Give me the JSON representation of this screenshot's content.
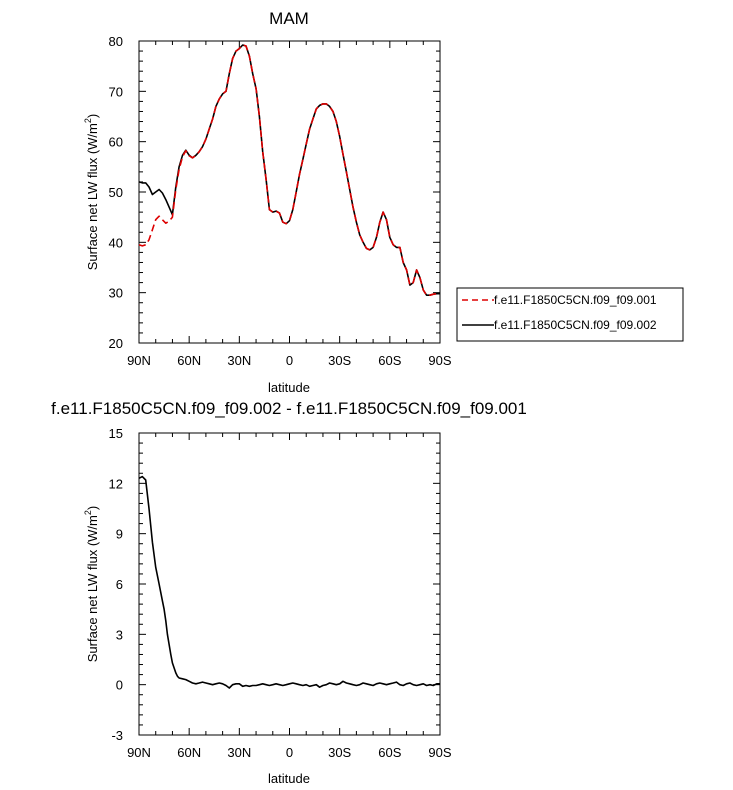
{
  "chart_data": [
    {
      "type": "line",
      "title": "MAM",
      "xlabel": "latitude",
      "ylabel": "Surface net LW flux (W/m",
      "ylabel_sup": "2",
      "ylabel_close": ")",
      "xlim": [
        90,
        -90
      ],
      "ylim": [
        20,
        80
      ],
      "x_ticks": [
        90,
        60,
        30,
        0,
        -30,
        -60,
        -90
      ],
      "x_tick_labels": [
        "90N",
        "60N",
        "30N",
        "0",
        "30S",
        "60S",
        "90S"
      ],
      "y_ticks": [
        20,
        30,
        40,
        50,
        60,
        70,
        80
      ],
      "y_tick_labels": [
        "20",
        "30",
        "40",
        "50",
        "60",
        "70",
        "80"
      ],
      "legend": {
        "placement": "outside-right",
        "entries": [
          "f.e11.F1850C5CN.f09_f09.001",
          "f.e11.F1850C5CN.f09_f09.002"
        ]
      },
      "series": [
        {
          "name": "f.e11.F1850C5CN.f09_f09.001",
          "color": "#dd0000",
          "dash": "dashed",
          "x": [
            90,
            88,
            86,
            84,
            82,
            80,
            78,
            76,
            74,
            72,
            70,
            68,
            66,
            64,
            62,
            60,
            58,
            56,
            54,
            52,
            50,
            48,
            46,
            44,
            42,
            40,
            38,
            36,
            34,
            32,
            30,
            28,
            26,
            24,
            22,
            20,
            18,
            16,
            14,
            12,
            10,
            8,
            6,
            4,
            2,
            0,
            -2,
            -4,
            -6,
            -8,
            -10,
            -12,
            -14,
            -16,
            -18,
            -20,
            -22,
            -24,
            -26,
            -28,
            -30,
            -32,
            -34,
            -36,
            -38,
            -40,
            -42,
            -44,
            -46,
            -48,
            -50,
            -52,
            -54,
            -56,
            -58,
            -60,
            -62,
            -64,
            -66,
            -68,
            -70,
            -72,
            -74,
            -76,
            -78,
            -80,
            -82,
            -84,
            -86,
            -88,
            -90
          ],
          "values": [
            39.5,
            39.3,
            39.5,
            40.5,
            42.5,
            44.5,
            45.2,
            44.5,
            43.8,
            44.2,
            45.0,
            50.5,
            54.5,
            57.0,
            58.2,
            57.2,
            56.8,
            57.3,
            58.0,
            59.0,
            60.5,
            62.5,
            64.5,
            67.0,
            68.5,
            69.5,
            70.0,
            73.5,
            76.5,
            78.0,
            78.5,
            79.2,
            79.0,
            77.0,
            73.5,
            70.5,
            65.0,
            58.0,
            52.5,
            46.5,
            46.0,
            46.2,
            45.8,
            44.0,
            43.7,
            44.3,
            46.5,
            50.0,
            53.5,
            56.5,
            59.5,
            62.5,
            64.5,
            66.5,
            67.2,
            67.5,
            67.5,
            67.0,
            66.0,
            64.0,
            61.0,
            57.5,
            54.0,
            50.5,
            47.0,
            44.0,
            41.5,
            40.0,
            38.8,
            38.5,
            39.0,
            41.0,
            44.0,
            46.0,
            44.5,
            41.0,
            39.5,
            39.0,
            39.0,
            36.0,
            34.5,
            31.5,
            32.0,
            34.5,
            33.0,
            30.5,
            29.5,
            29.5,
            29.7,
            29.8,
            29.8
          ]
        },
        {
          "name": "f.e11.F1850C5CN.f09_f09.002",
          "color": "#000000",
          "dash": "solid",
          "x": [
            90,
            88,
            86,
            84,
            82,
            80,
            78,
            76,
            74,
            72,
            70,
            68,
            66,
            64,
            62,
            60,
            58,
            56,
            54,
            52,
            50,
            48,
            46,
            44,
            42,
            40,
            38,
            36,
            34,
            32,
            30,
            28,
            26,
            24,
            22,
            20,
            18,
            16,
            14,
            12,
            10,
            8,
            6,
            4,
            2,
            0,
            -2,
            -4,
            -6,
            -8,
            -10,
            -12,
            -14,
            -16,
            -18,
            -20,
            -22,
            -24,
            -26,
            -28,
            -30,
            -32,
            -34,
            -36,
            -38,
            -40,
            -42,
            -44,
            -46,
            -48,
            -50,
            -52,
            -54,
            -56,
            -58,
            -60,
            -62,
            -64,
            -66,
            -68,
            -70,
            -72,
            -74,
            -76,
            -78,
            -80,
            -82,
            -84,
            -86,
            -88,
            -90
          ],
          "values": [
            52.0,
            51.8,
            51.8,
            51.0,
            49.5,
            50.0,
            50.5,
            49.8,
            48.5,
            47.0,
            45.5,
            51.0,
            55.0,
            57.3,
            58.3,
            57.3,
            56.8,
            57.3,
            58.0,
            59.0,
            60.5,
            62.5,
            64.5,
            67.0,
            68.5,
            69.5,
            70.0,
            73.5,
            76.5,
            78.0,
            78.5,
            79.2,
            79.0,
            77.0,
            73.5,
            70.5,
            65.0,
            58.0,
            52.5,
            46.5,
            46.0,
            46.2,
            45.8,
            44.0,
            43.7,
            44.3,
            46.5,
            50.0,
            53.5,
            56.5,
            59.5,
            62.5,
            64.5,
            66.5,
            67.2,
            67.5,
            67.5,
            67.0,
            66.0,
            64.0,
            61.0,
            57.5,
            54.0,
            50.5,
            47.0,
            44.0,
            41.5,
            40.0,
            38.8,
            38.5,
            39.0,
            41.0,
            44.0,
            46.0,
            44.5,
            41.0,
            39.5,
            39.0,
            39.0,
            36.0,
            34.5,
            31.5,
            32.0,
            34.5,
            33.0,
            30.5,
            29.5,
            29.5,
            29.7,
            29.8,
            29.8
          ]
        }
      ]
    },
    {
      "type": "line",
      "title": "f.e11.F1850C5CN.f09_f09.002 - f.e11.F1850C5CN.f09_f09.001",
      "xlabel": "latitude",
      "ylabel": "Surface net LW flux (W/m",
      "ylabel_sup": "2",
      "ylabel_close": ")",
      "xlim": [
        90,
        -90
      ],
      "ylim": [
        -3,
        15
      ],
      "x_ticks": [
        90,
        60,
        30,
        0,
        -30,
        -60,
        -90
      ],
      "x_tick_labels": [
        "90N",
        "60N",
        "30N",
        "0",
        "30S",
        "60S",
        "90S"
      ],
      "y_ticks": [
        -3,
        0,
        3,
        6,
        9,
        12,
        15
      ],
      "y_tick_labels": [
        "-3",
        "0",
        "3",
        "6",
        "9",
        "12",
        "15"
      ],
      "series": [
        {
          "color": "#000000",
          "dash": "solid",
          "x": [
            90,
            88,
            86,
            84,
            83,
            82,
            80,
            78,
            76,
            75,
            74,
            73,
            72,
            71,
            70,
            69,
            68,
            67,
            66,
            64,
            62,
            60,
            58,
            56,
            54,
            52,
            50,
            48,
            46,
            44,
            42,
            40,
            38,
            36,
            34,
            32,
            30,
            28,
            26,
            24,
            22,
            20,
            18,
            16,
            14,
            12,
            10,
            8,
            6,
            4,
            2,
            0,
            -2,
            -4,
            -6,
            -8,
            -10,
            -12,
            -14,
            -16,
            -18,
            -20,
            -22,
            -24,
            -26,
            -28,
            -30,
            -32,
            -34,
            -36,
            -38,
            -40,
            -42,
            -44,
            -46,
            -48,
            -50,
            -52,
            -54,
            -56,
            -58,
            -60,
            -62,
            -64,
            -66,
            -68,
            -70,
            -72,
            -74,
            -76,
            -78,
            -80,
            -82,
            -84,
            -86,
            -88,
            -90
          ],
          "values": [
            12.3,
            12.4,
            12.2,
            10.5,
            9.5,
            8.5,
            7.0,
            6.0,
            5.0,
            4.5,
            3.8,
            3.0,
            2.4,
            1.8,
            1.3,
            1.0,
            0.7,
            0.5,
            0.4,
            0.35,
            0.3,
            0.2,
            0.1,
            0.05,
            0.1,
            0.15,
            0.1,
            0.05,
            0.0,
            0.05,
            0.1,
            0.05,
            -0.05,
            -0.2,
            0.0,
            0.05,
            0.05,
            -0.1,
            -0.05,
            -0.1,
            -0.05,
            -0.05,
            0.0,
            0.05,
            0.0,
            -0.05,
            0.0,
            0.05,
            0.0,
            -0.05,
            0.0,
            0.05,
            0.1,
            0.05,
            0.0,
            -0.05,
            0.0,
            -0.1,
            -0.05,
            0.0,
            -0.15,
            -0.05,
            0.0,
            0.1,
            0.05,
            0.0,
            0.05,
            0.2,
            0.1,
            0.05,
            0.0,
            -0.05,
            0.0,
            0.1,
            0.05,
            0.0,
            -0.05,
            0.05,
            0.1,
            0.05,
            0.0,
            0.05,
            0.1,
            0.15,
            0.0,
            -0.05,
            0.05,
            0.1,
            0.0,
            -0.05,
            0.0,
            0.05,
            -0.05,
            0.0,
            -0.05,
            0.05,
            0.05
          ]
        }
      ]
    }
  ]
}
